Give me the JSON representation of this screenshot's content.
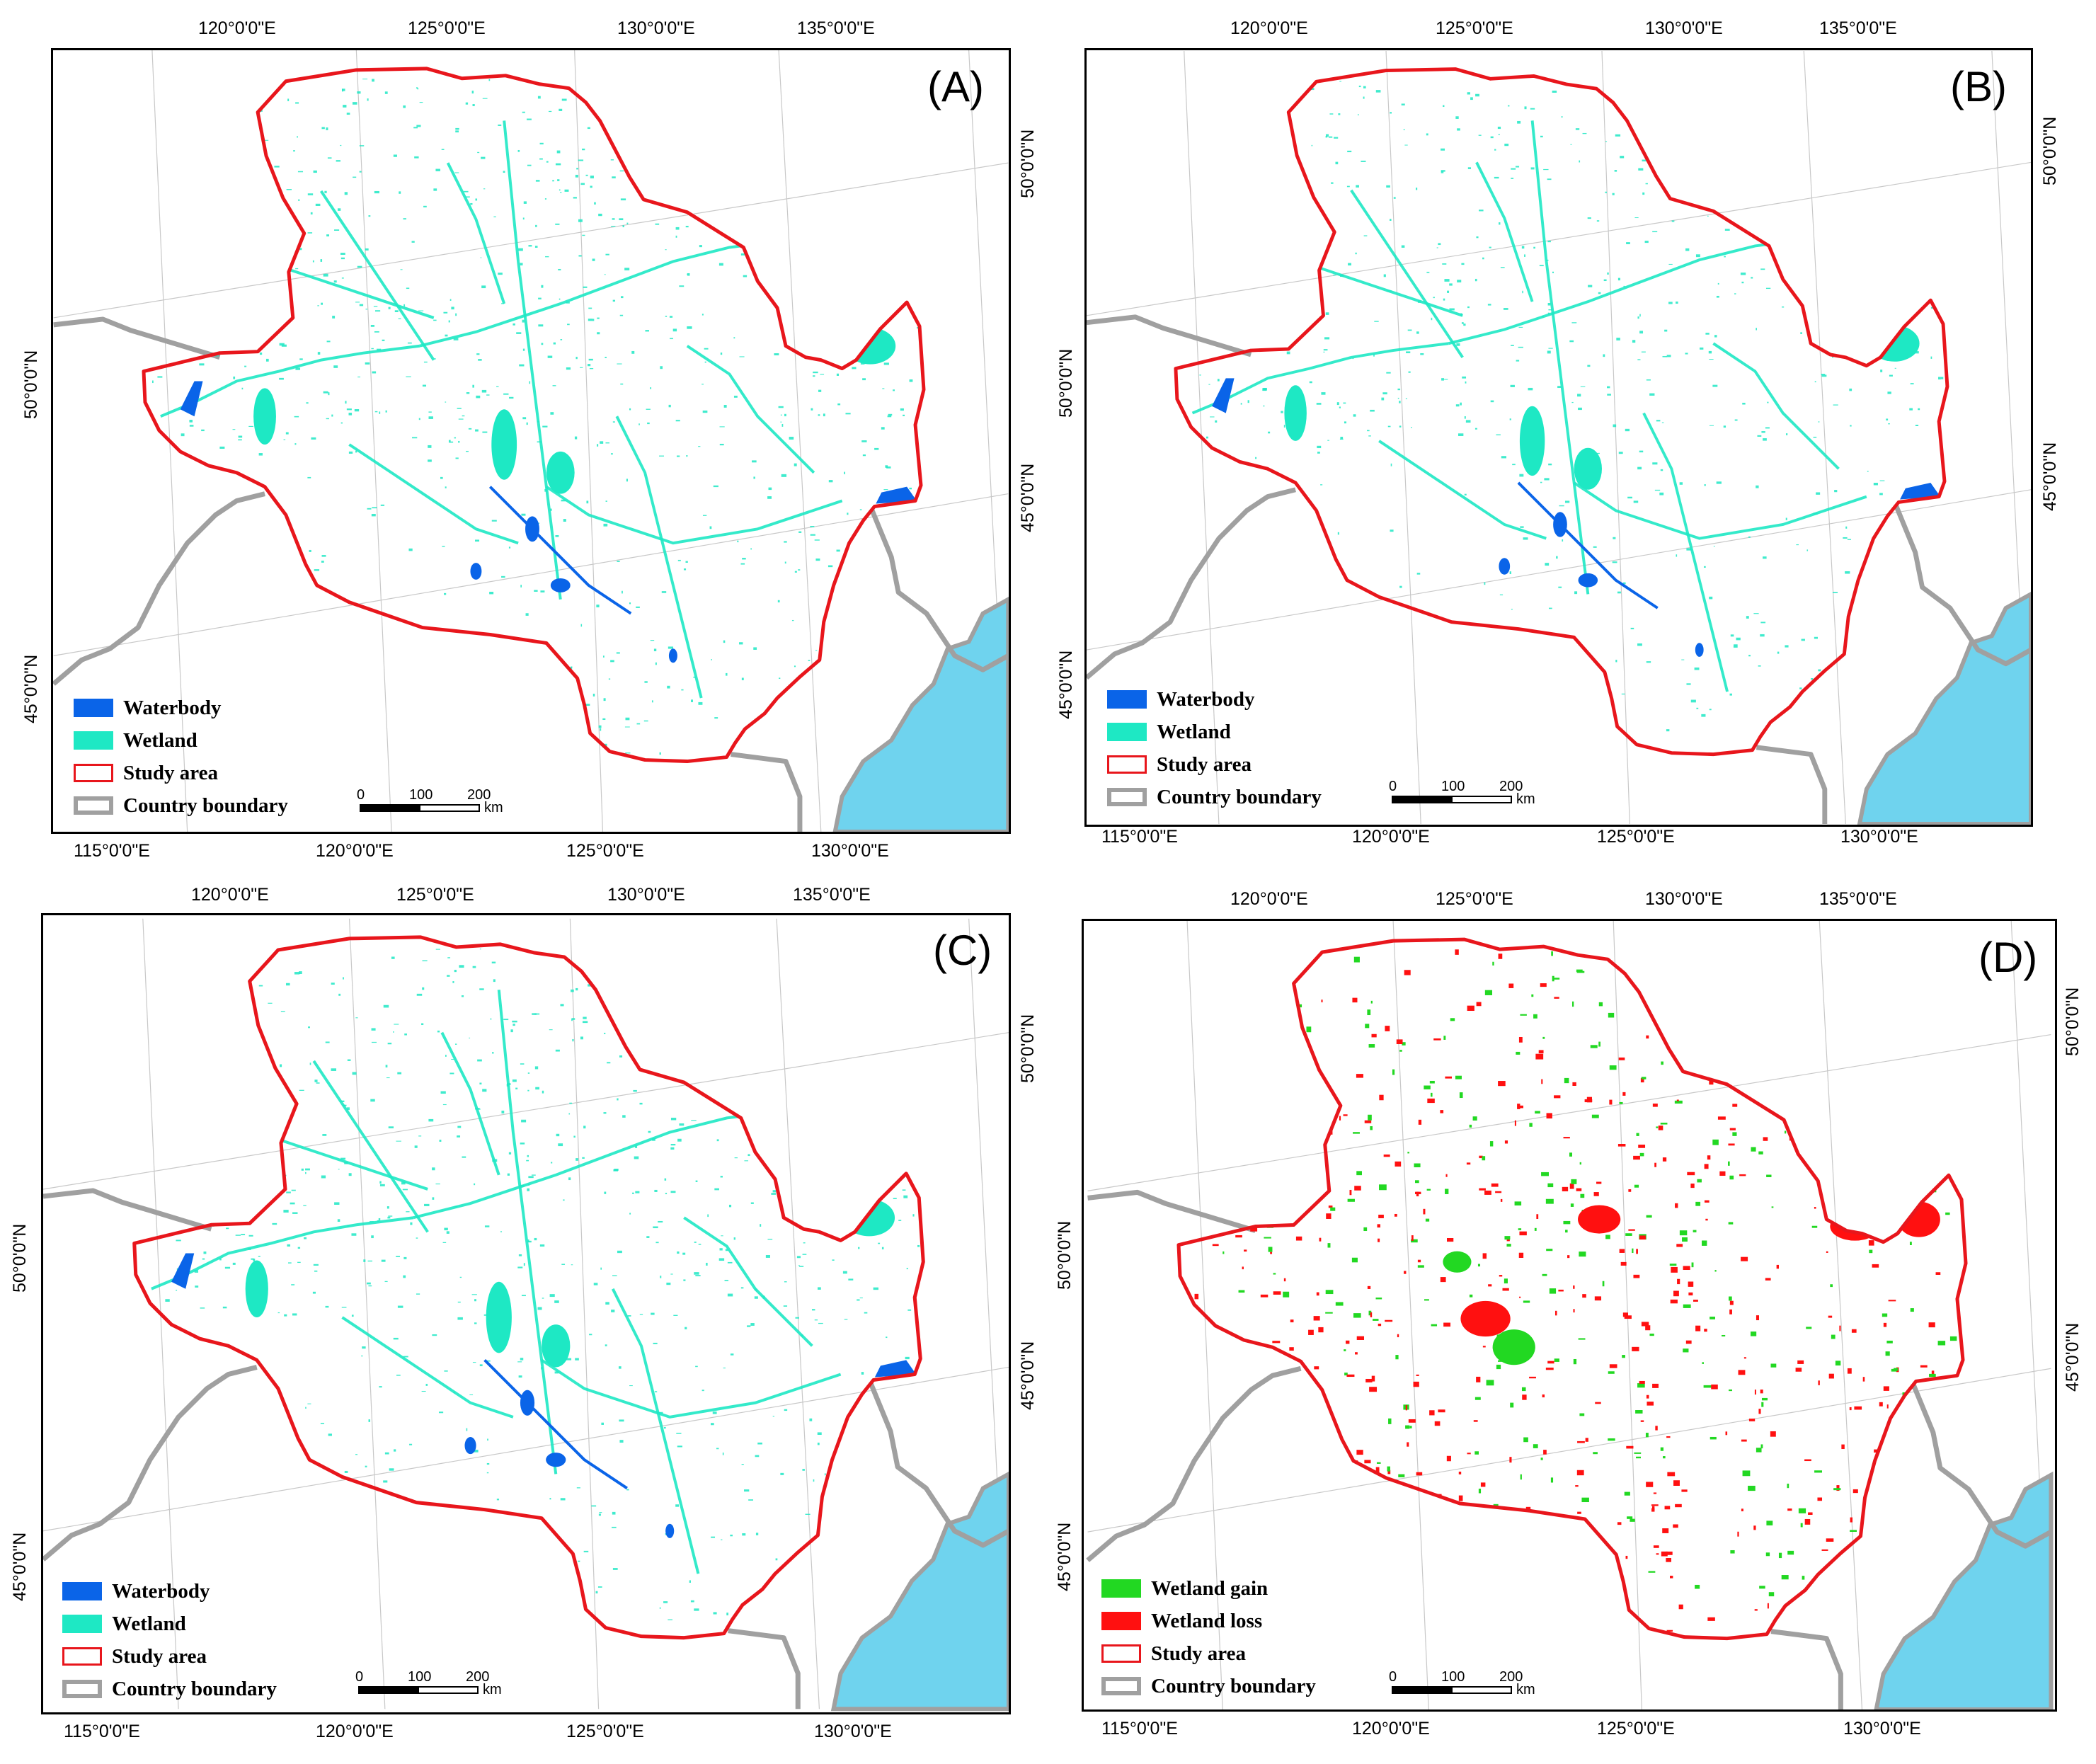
{
  "colors": {
    "waterbody": "#0a64e8",
    "wetland": "#1ee8c4",
    "study_area": "#e8161c",
    "country_boundary": "#a0a0a0",
    "sea": "#6fd3ee",
    "wetland_gain": "#22d822",
    "wetland_loss": "#ff1010"
  },
  "graticule": {
    "top_lon": [
      "120°0'0\"E",
      "125°0'0\"E",
      "130°0'0\"E",
      "135°0'0\"E"
    ],
    "bottom_lon": [
      "115°0'0\"E",
      "120°0'0\"E",
      "125°0'0\"E",
      "130°0'0\"E"
    ],
    "left_lat": [
      "50°0'0\"N",
      "45°0'0\"N"
    ],
    "right_lat": [
      "50°0'0\"N",
      "45°0'0\"N"
    ]
  },
  "scale_bar": {
    "ticks": [
      "0",
      "100",
      "200"
    ],
    "unit": "km"
  },
  "panels": [
    {
      "label": "(A)",
      "legend": [
        {
          "text": "Waterbody",
          "symbol": "waterbody-swatch"
        },
        {
          "text": "Wetland",
          "symbol": "wetland-swatch"
        },
        {
          "text": "Study area",
          "symbol": "study-area-swatch"
        },
        {
          "text": "Country boundary",
          "symbol": "country-boundary-swatch"
        }
      ]
    },
    {
      "label": "(B)",
      "legend": [
        {
          "text": "Waterbody",
          "symbol": "waterbody-swatch"
        },
        {
          "text": "Wetland",
          "symbol": "wetland-swatch"
        },
        {
          "text": "Study area",
          "symbol": "study-area-swatch"
        },
        {
          "text": "Country boundary",
          "symbol": "country-boundary-swatch"
        }
      ]
    },
    {
      "label": "(C)",
      "legend": [
        {
          "text": "Waterbody",
          "symbol": "waterbody-swatch"
        },
        {
          "text": "Wetland",
          "symbol": "wetland-swatch"
        },
        {
          "text": "Study area",
          "symbol": "study-area-swatch"
        },
        {
          "text": "Country boundary",
          "symbol": "country-boundary-swatch"
        }
      ]
    },
    {
      "label": "(D)",
      "legend": [
        {
          "text": "Wetland gain",
          "symbol": "wetland-gain-swatch"
        },
        {
          "text": "Wetland loss",
          "symbol": "wetland-loss-swatch"
        },
        {
          "text": "Study area",
          "symbol": "study-area-swatch"
        },
        {
          "text": "Country boundary",
          "symbol": "country-boundary-swatch"
        }
      ]
    }
  ]
}
